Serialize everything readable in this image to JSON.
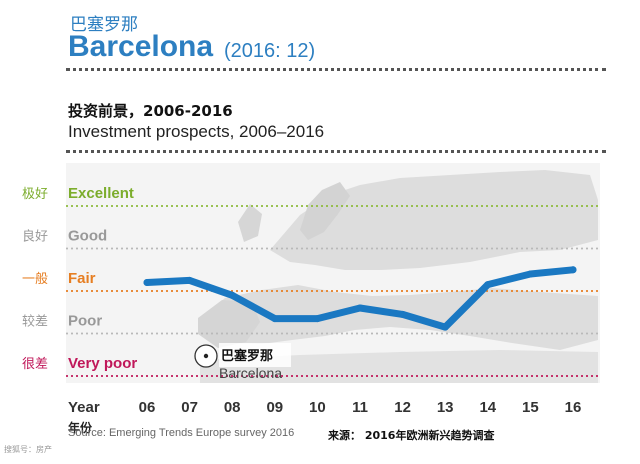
{
  "header": {
    "city_cn": "巴塞罗那",
    "city": "Barcelona",
    "rank": "(2016: 12)",
    "subtitle_cn": "投资前景，2006-2016",
    "subtitle": "Investment prospects, 2006–2016"
  },
  "chart_data": {
    "type": "line",
    "title": "Investment prospects, 2006–2016",
    "xlabel": "Year",
    "xlabel_cn": "年份",
    "x": [
      "06",
      "07",
      "08",
      "09",
      "10",
      "11",
      "12",
      "13",
      "14",
      "15",
      "16"
    ],
    "levels": [
      {
        "cn": "极好",
        "en": "Excellent",
        "color": "#7cad2c",
        "line_color": "#8dbb3c"
      },
      {
        "cn": "良好",
        "en": "Good",
        "color": "#999999",
        "line_color": "#b9b9b9"
      },
      {
        "cn": "一般",
        "en": "Fair",
        "color": "#e67e22",
        "line_color": "#e67e22"
      },
      {
        "cn": "较差",
        "en": "Poor",
        "color": "#999999",
        "line_color": "#b9b9b9"
      },
      {
        "cn": "很差",
        "en": "Very poor",
        "color": "#c0185a",
        "line_color": "#c0185a"
      }
    ],
    "ylim": [
      1,
      5
    ],
    "series": [
      {
        "name": "Barcelona",
        "color": "#1a78c2",
        "values": [
          3.2,
          3.25,
          2.9,
          2.35,
          2.35,
          2.6,
          2.45,
          2.15,
          3.15,
          3.4,
          3.5
        ]
      }
    ],
    "annotation": {
      "label_cn": "巴塞罗那",
      "label": "Barcelona"
    }
  },
  "footer": {
    "source": "Source: Emerging Trends Europe survey 2016",
    "source_cn": "来源： 2016年欧洲新兴趋势调查"
  },
  "watermark": "搜狐号：房产"
}
